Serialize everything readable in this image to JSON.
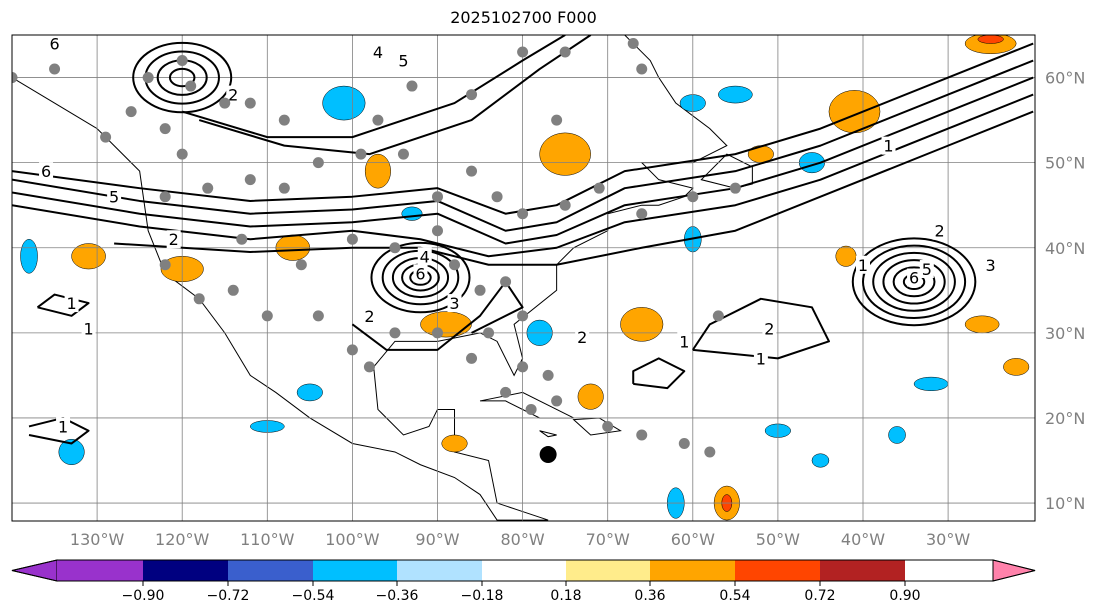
{
  "title": "2025102700 F000",
  "lon_labels": [
    "130°W",
    "120°W",
    "110°W",
    "100°W",
    "90°W",
    "80°W",
    "70°W",
    "60°W",
    "50°W",
    "40°W",
    "30°W"
  ],
  "lon_values": [
    -130,
    -120,
    -110,
    -100,
    -90,
    -80,
    -70,
    -60,
    -50,
    -40,
    -30
  ],
  "lat_labels": [
    "60°N",
    "50°N",
    "40°N",
    "30°N",
    "20°N",
    "10°N"
  ],
  "lat_values": [
    60,
    50,
    40,
    30,
    20,
    10
  ],
  "extent": {
    "lon": [
      -140,
      -20
    ],
    "lat": [
      7.9,
      65
    ]
  },
  "colorbar": {
    "ticks": [
      "−0.90",
      "−0.72",
      "−0.54",
      "−0.36",
      "−0.18",
      "0.18",
      "0.36",
      "0.54",
      "0.72",
      "0.90"
    ],
    "colors": [
      "#9932cc",
      "#000080",
      "#3a5fcd",
      "#00bfff",
      "#b0e2ff",
      "#ffffff",
      "#ffec8b",
      "#ffa500",
      "#ff4500",
      "#b22222",
      "#ff82ab"
    ]
  },
  "land": [
    [
      -140,
      60
    ],
    [
      -135,
      57
    ],
    [
      -130,
      54
    ],
    [
      -125,
      49
    ],
    [
      -124,
      42
    ],
    [
      -122,
      37
    ],
    [
      -118,
      34
    ],
    [
      -115,
      30
    ],
    [
      -112,
      25
    ],
    [
      -109,
      23
    ],
    [
      -105,
      20
    ],
    [
      -100,
      17
    ],
    [
      -95,
      16
    ],
    [
      -92,
      14.5
    ],
    [
      -88,
      13
    ],
    [
      -85,
      11
    ],
    [
      -83,
      8
    ],
    [
      -77,
      8
    ],
    [
      -80,
      9
    ],
    [
      -83,
      10
    ],
    [
      -84,
      15
    ],
    [
      -88,
      16
    ],
    [
      -88,
      21
    ],
    [
      -90,
      21
    ],
    [
      -91,
      19
    ],
    [
      -94,
      18
    ],
    [
      -97,
      21
    ],
    [
      -97.5,
      26
    ],
    [
      -95,
      29
    ],
    [
      -90,
      29
    ],
    [
      -85,
      30
    ],
    [
      -83,
      29
    ],
    [
      -81,
      25
    ],
    [
      -80,
      27
    ],
    [
      -81,
      31
    ],
    [
      -76,
      35
    ],
    [
      -76,
      38
    ],
    [
      -74,
      40
    ],
    [
      -70,
      42
    ],
    [
      -70,
      44
    ],
    [
      -66,
      45
    ],
    [
      -64,
      45
    ],
    [
      -61,
      46
    ],
    [
      -60,
      47
    ],
    [
      -64,
      48
    ],
    [
      -66,
      50
    ],
    [
      -60,
      50
    ],
    [
      -56,
      52
    ],
    [
      -58,
      54
    ],
    [
      -62,
      57
    ],
    [
      -64,
      60
    ],
    [
      -65,
      62
    ],
    [
      -68,
      65
    ],
    [
      -140,
      65
    ]
  ],
  "islands": [
    [
      [
        -85,
        22
      ],
      [
        -80,
        23
      ],
      [
        -76,
        21
      ],
      [
        -74,
        20
      ],
      [
        -78,
        20
      ],
      [
        -82,
        22
      ]
    ],
    [
      [
        -74,
        19.8
      ],
      [
        -71,
        20
      ],
      [
        -68.5,
        18.5
      ],
      [
        -72,
        18
      ]
    ],
    [
      [
        -55,
        47
      ],
      [
        -53,
        47.5
      ],
      [
        -53,
        49.5
      ],
      [
        -56,
        51
      ],
      [
        -59,
        48
      ]
    ],
    [
      [
        -78,
        18.5
      ],
      [
        -76,
        18
      ],
      [
        -77,
        17.8
      ]
    ]
  ],
  "shading": [
    {
      "lon": -120,
      "lat": 37.5,
      "rx": 2.5,
      "ry": 1.5,
      "color": "#ffa500"
    },
    {
      "lon": -107,
      "lat": 40,
      "rx": 2,
      "ry": 1.5,
      "color": "#ffa500"
    },
    {
      "lon": -101,
      "lat": 57,
      "rx": 2.5,
      "ry": 2,
      "color": "#00bfff"
    },
    {
      "lon": -97,
      "lat": 49,
      "rx": 1.5,
      "ry": 2,
      "color": "#ffa500"
    },
    {
      "lon": -75,
      "lat": 51,
      "rx": 3,
      "ry": 2.5,
      "color": "#ffa500"
    },
    {
      "lon": -89,
      "lat": 31,
      "rx": 3,
      "ry": 1.5,
      "color": "#ffa500"
    },
    {
      "lon": -78,
      "lat": 30,
      "rx": 1.5,
      "ry": 1.5,
      "color": "#00bfff"
    },
    {
      "lon": -66,
      "lat": 31,
      "rx": 2.5,
      "ry": 2,
      "color": "#ffa500"
    },
    {
      "lon": -72,
      "lat": 22.5,
      "rx": 1.5,
      "ry": 1.5,
      "color": "#ffa500"
    },
    {
      "lon": -60,
      "lat": 57,
      "rx": 1.5,
      "ry": 1,
      "color": "#00bfff"
    },
    {
      "lon": -55,
      "lat": 58,
      "rx": 2,
      "ry": 1,
      "color": "#00bfff"
    },
    {
      "lon": -41,
      "lat": 56,
      "rx": 3,
      "ry": 2.5,
      "color": "#ffa500"
    },
    {
      "lon": -52,
      "lat": 51,
      "rx": 1.5,
      "ry": 1,
      "color": "#ffa500"
    },
    {
      "lon": -46,
      "lat": 50,
      "rx": 1.5,
      "ry": 1.2,
      "color": "#00bfff"
    },
    {
      "lon": -60,
      "lat": 41,
      "rx": 1,
      "ry": 1.5,
      "color": "#00bfff"
    },
    {
      "lon": -42,
      "lat": 39,
      "rx": 1.2,
      "ry": 1.2,
      "color": "#ffa500"
    },
    {
      "lon": -56,
      "lat": 10,
      "rx": 1.5,
      "ry": 2,
      "color": "#ffa500"
    },
    {
      "lon": -56,
      "lat": 10,
      "rx": 0.6,
      "ry": 1,
      "color": "#ff4500"
    },
    {
      "lon": -88,
      "lat": 17,
      "rx": 1.5,
      "ry": 1,
      "color": "#ffa500"
    },
    {
      "lon": -133,
      "lat": 16,
      "rx": 1.5,
      "ry": 1.5,
      "color": "#00bfff"
    },
    {
      "lon": -138,
      "lat": 39,
      "rx": 1,
      "ry": 2,
      "color": "#00bfff"
    },
    {
      "lon": -105,
      "lat": 23,
      "rx": 1.5,
      "ry": 1,
      "color": "#00bfff"
    },
    {
      "lon": -110,
      "lat": 19,
      "rx": 2,
      "ry": 0.7,
      "color": "#00bfff"
    },
    {
      "lon": -26,
      "lat": 31,
      "rx": 2,
      "ry": 1,
      "color": "#ffa500"
    },
    {
      "lon": -22,
      "lat": 26,
      "rx": 1.5,
      "ry": 1,
      "color": "#ffa500"
    },
    {
      "lon": -32,
      "lat": 24,
      "rx": 2,
      "ry": 0.8,
      "color": "#00bfff"
    },
    {
      "lon": -36,
      "lat": 18,
      "rx": 1,
      "ry": 1,
      "color": "#00bfff"
    },
    {
      "lon": -45,
      "lat": 15,
      "rx": 1,
      "ry": 0.8,
      "color": "#00bfff"
    },
    {
      "lon": -50,
      "lat": 18.5,
      "rx": 1.5,
      "ry": 0.8,
      "color": "#00bfff"
    },
    {
      "lon": -62,
      "lat": 10,
      "rx": 1,
      "ry": 1.8,
      "color": "#00bfff"
    },
    {
      "lon": -25,
      "lat": 64,
      "rx": 3,
      "ry": 1.2,
      "color": "#ffa500"
    },
    {
      "lon": -25,
      "lat": 64.5,
      "rx": 1.5,
      "ry": 0.5,
      "color": "#ff4500"
    },
    {
      "lon": -131,
      "lat": 39,
      "rx": 2,
      "ry": 1.5,
      "color": "#ffa500"
    },
    {
      "lon": -93,
      "lat": 44,
      "rx": 1.2,
      "ry": 0.8,
      "color": "#00bfff"
    }
  ],
  "contours": [
    [
      [
        -140,
        49
      ],
      [
        -125,
        47
      ],
      [
        -112,
        45.5
      ],
      [
        -100,
        46
      ],
      [
        -90,
        47
      ],
      [
        -82,
        44
      ],
      [
        -76,
        45
      ],
      [
        -68,
        49
      ],
      [
        -55,
        51
      ],
      [
        -45,
        54
      ],
      [
        -30,
        60
      ],
      [
        -20,
        64
      ]
    ],
    [
      [
        -140,
        48
      ],
      [
        -125,
        45.5
      ],
      [
        -112,
        44
      ],
      [
        -100,
        44.5
      ],
      [
        -90,
        45.5
      ],
      [
        -82,
        42
      ],
      [
        -76,
        43
      ],
      [
        -68,
        47
      ],
      [
        -55,
        49
      ],
      [
        -45,
        52
      ],
      [
        -30,
        58
      ],
      [
        -20,
        62
      ]
    ],
    [
      [
        -140,
        46.5
      ],
      [
        -125,
        44
      ],
      [
        -112,
        42.5
      ],
      [
        -100,
        43
      ],
      [
        -90,
        44
      ],
      [
        -82,
        40.5
      ],
      [
        -76,
        41.5
      ],
      [
        -68,
        45
      ],
      [
        -55,
        47
      ],
      [
        -45,
        50
      ],
      [
        -30,
        56
      ],
      [
        -20,
        60
      ]
    ],
    [
      [
        -140,
        45
      ],
      [
        -125,
        42.5
      ],
      [
        -112,
        41
      ],
      [
        -100,
        42
      ],
      [
        -92,
        41
      ],
      [
        -84,
        39
      ],
      [
        -76,
        40
      ],
      [
        -68,
        43
      ],
      [
        -55,
        45
      ],
      [
        -45,
        48
      ],
      [
        -30,
        54
      ],
      [
        -20,
        58
      ]
    ],
    [
      [
        -128,
        40.5
      ],
      [
        -112,
        39.5
      ],
      [
        -100,
        40
      ],
      [
        -92,
        40
      ],
      [
        -84,
        38
      ],
      [
        -76,
        38
      ],
      [
        -66,
        40
      ],
      [
        -55,
        42
      ],
      [
        -45,
        46
      ],
      [
        -30,
        52
      ],
      [
        -20,
        56
      ]
    ],
    [
      [
        -120,
        56
      ],
      [
        -110,
        53
      ],
      [
        -100,
        53
      ],
      [
        -88,
        57
      ],
      [
        -80,
        62
      ],
      [
        -75,
        65
      ]
    ],
    [
      [
        -118,
        55
      ],
      [
        -108,
        52
      ],
      [
        -98,
        51
      ],
      [
        -86,
        55
      ],
      [
        -78,
        61
      ],
      [
        -72,
        65
      ]
    ],
    [
      [
        -100,
        31
      ],
      [
        -96,
        28
      ],
      [
        -90,
        28
      ],
      [
        -85,
        32
      ],
      [
        -82,
        36
      ],
      [
        -80,
        33
      ],
      [
        -86,
        30
      ]
    ],
    [
      [
        -60,
        28
      ],
      [
        -50,
        27
      ],
      [
        -44,
        29
      ],
      [
        -46,
        33
      ],
      [
        -52,
        34
      ],
      [
        -58,
        31
      ],
      [
        -60,
        28
      ]
    ],
    [
      [
        -137,
        33
      ],
      [
        -133,
        32
      ],
      [
        -131,
        33.5
      ],
      [
        -135,
        34.5
      ],
      [
        -137,
        33
      ]
    ],
    [
      [
        -138,
        18
      ],
      [
        -133,
        17
      ],
      [
        -131,
        18.5
      ],
      [
        -134,
        20
      ],
      [
        -138,
        19
      ]
    ],
    [
      [
        -67,
        24
      ],
      [
        -63,
        23.5
      ],
      [
        -61,
        25.5
      ],
      [
        -64,
        27
      ],
      [
        -67,
        25.5
      ],
      [
        -67,
        24
      ]
    ]
  ],
  "closed_lows": [
    {
      "lon": -92,
      "lat": 36.5,
      "radii": [
        1,
        1.8,
        2.7,
        3.7,
        4.8
      ]
    },
    {
      "lon": -120,
      "lat": 60,
      "radii": [
        1.2,
        2.4,
        3.6,
        4.8
      ]
    },
    {
      "lon": -34,
      "lat": 36,
      "radii": [
        1,
        2,
        3,
        4,
        5,
        6
      ]
    }
  ],
  "contour_labels": [
    {
      "text": "6",
      "lon": -135,
      "lat": 64
    },
    {
      "text": "5",
      "lon": -94,
      "lat": 62
    },
    {
      "text": "4",
      "lon": -97,
      "lat": 63
    },
    {
      "text": "2",
      "lon": -114,
      "lat": 58
    },
    {
      "text": "6",
      "lon": -136,
      "lat": 49
    },
    {
      "text": "5",
      "lon": -128,
      "lat": 46
    },
    {
      "text": "2",
      "lon": -121,
      "lat": 41
    },
    {
      "text": "1",
      "lon": -133,
      "lat": 33.5
    },
    {
      "text": "1",
      "lon": -131,
      "lat": 30.5
    },
    {
      "text": "1",
      "lon": -134,
      "lat": 19
    },
    {
      "text": "2",
      "lon": -98,
      "lat": 32
    },
    {
      "text": "4",
      "lon": -91.5,
      "lat": 39
    },
    {
      "text": "6",
      "lon": -92,
      "lat": 37
    },
    {
      "text": "3",
      "lon": -88,
      "lat": 33.5
    },
    {
      "text": "2",
      "lon": -73,
      "lat": 29.5
    },
    {
      "text": "1",
      "lon": -61,
      "lat": 29
    },
    {
      "text": "2",
      "lon": -51,
      "lat": 30.5
    },
    {
      "text": "1",
      "lon": -52,
      "lat": 27
    },
    {
      "text": "1",
      "lon": -37,
      "lat": 52
    },
    {
      "text": "2",
      "lon": -31,
      "lat": 42
    },
    {
      "text": "3",
      "lon": -25,
      "lat": 38
    },
    {
      "text": "5",
      "lon": -32.5,
      "lat": 37.5
    },
    {
      "text": "6",
      "lon": -34,
      "lat": 36.5
    },
    {
      "text": "1",
      "lon": -40,
      "lat": 38
    }
  ],
  "stations": [
    [
      -140,
      60
    ],
    [
      -135,
      61
    ],
    [
      -120,
      62
    ],
    [
      -119,
      59
    ],
    [
      -115,
      57
    ],
    [
      -112,
      57
    ],
    [
      -108,
      55
    ],
    [
      -97,
      55
    ],
    [
      -93,
      59
    ],
    [
      -86,
      58
    ],
    [
      -80,
      63
    ],
    [
      -75,
      63
    ],
    [
      -67,
      64
    ],
    [
      -66,
      61
    ],
    [
      -76,
      55
    ],
    [
      -122,
      54
    ],
    [
      -120,
      51
    ],
    [
      -112,
      48
    ],
    [
      -108,
      47
    ],
    [
      -104,
      50
    ],
    [
      -99,
      51
    ],
    [
      -94,
      51
    ],
    [
      -86,
      49
    ],
    [
      -90,
      46
    ],
    [
      -83,
      46
    ],
    [
      -80,
      44
    ],
    [
      -75,
      45
    ],
    [
      -71,
      47
    ],
    [
      -66,
      44
    ],
    [
      -60,
      46
    ],
    [
      -55,
      47
    ],
    [
      -122,
      46
    ],
    [
      -117,
      47
    ],
    [
      -113,
      41
    ],
    [
      -106,
      38
    ],
    [
      -100,
      41
    ],
    [
      -95,
      40
    ],
    [
      -90,
      42
    ],
    [
      -88,
      38
    ],
    [
      -85,
      35
    ],
    [
      -82,
      36
    ],
    [
      -80,
      32
    ],
    [
      -84,
      30
    ],
    [
      -90,
      30
    ],
    [
      -95,
      30
    ],
    [
      -98,
      26
    ],
    [
      -100,
      28
    ],
    [
      -104,
      32
    ],
    [
      -110,
      32
    ],
    [
      -114,
      35
    ],
    [
      -118,
      34
    ],
    [
      -122,
      38
    ],
    [
      -80,
      26
    ],
    [
      -77,
      25
    ],
    [
      -66,
      18
    ],
    [
      -70,
      19
    ],
    [
      -76,
      22
    ],
    [
      -79,
      21
    ],
    [
      -82,
      23
    ],
    [
      -57,
      32
    ],
    [
      -58,
      16
    ],
    [
      -61,
      17
    ],
    [
      -86,
      27
    ],
    [
      -124,
      60
    ],
    [
      -129,
      53
    ],
    [
      -126,
      56
    ]
  ],
  "marker": {
    "lon": -77,
    "lat": 15.7
  }
}
